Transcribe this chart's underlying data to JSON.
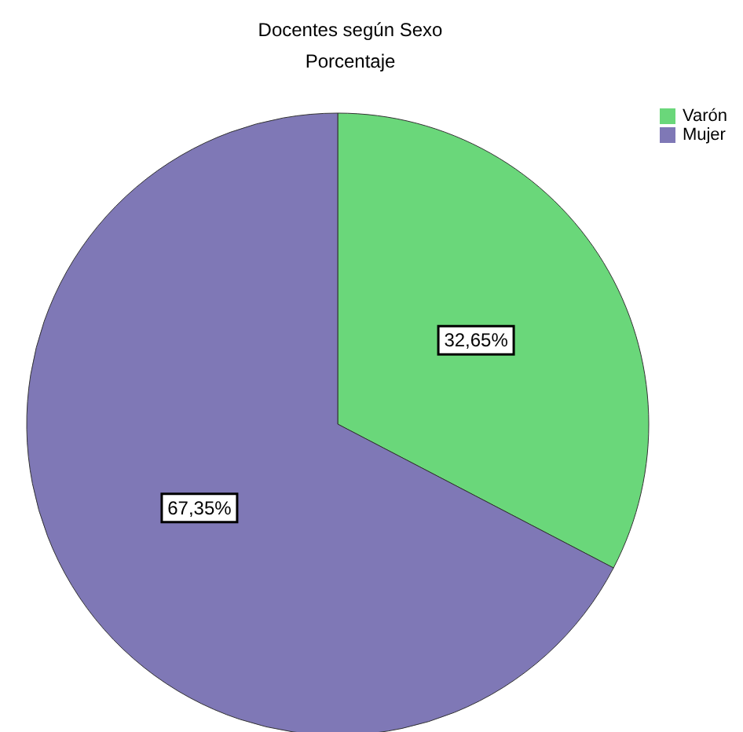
{
  "chart_data": {
    "type": "pie",
    "title": "Docentes según Sexo",
    "subtitle": "Porcentaje",
    "categories": [
      "Varón",
      "Mujer"
    ],
    "values": [
      32.65,
      67.35
    ],
    "colors": [
      "#6ad77a",
      "#7f78b6"
    ],
    "value_labels": [
      "32,65%",
      "67,35%"
    ],
    "legend": "top right"
  }
}
